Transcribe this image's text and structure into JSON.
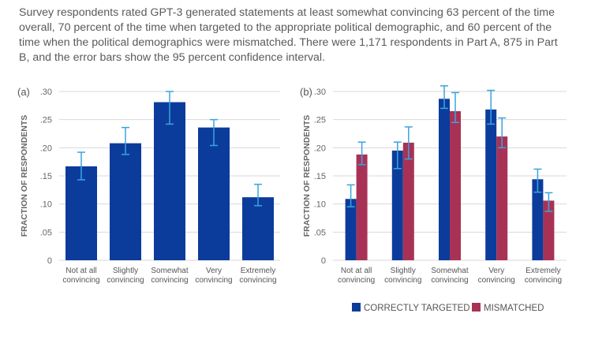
{
  "caption": "Survey respondents rated GPT-3 generated statements at least somewhat convincing 63 percent of the time overall, 70 percent of the time when targeted to the appropriate political demographic, and 60 percent of the time when the political demographics were mismatched. There were 1,171 respondents in Part A, 875 in Part B, and the error bars show the 95 percent confidence interval.",
  "colors": {
    "blue": "#0b3c9c",
    "red": "#a83256",
    "error": "#3aa4de",
    "grid": "#d9d9d9"
  },
  "chart_data": [
    {
      "type": "bar",
      "panel": "(a)",
      "ylabel": "FRACTION OF RESPONDENTS",
      "ylim": [
        0,
        0.3
      ],
      "yticks": [
        0,
        0.05,
        0.1,
        0.15,
        0.2,
        0.25,
        0.3
      ],
      "ytick_labels": [
        "0",
        ".05",
        ".10",
        ".15",
        ".20",
        ".25",
        ".30"
      ],
      "categories": [
        [
          "Not at all",
          "convincing"
        ],
        [
          "Slightly",
          "convincing"
        ],
        [
          "Somewhat",
          "convincing"
        ],
        [
          "Very",
          "convincing"
        ],
        [
          "Extremely",
          "convincing"
        ]
      ],
      "series": [
        {
          "values": [
            0.167,
            0.208,
            0.281,
            0.236,
            0.112
          ],
          "ci_low": [
            0.143,
            0.188,
            0.242,
            0.204,
            0.097
          ],
          "ci_high": [
            0.192,
            0.236,
            0.3,
            0.25,
            0.135
          ]
        }
      ],
      "grid": true
    },
    {
      "type": "bar",
      "panel": "(b)",
      "ylabel": "FRACTION OF RESPONDENTS",
      "ylim": [
        0,
        0.3
      ],
      "yticks": [
        0,
        0.05,
        0.1,
        0.15,
        0.2,
        0.25,
        0.3
      ],
      "ytick_labels": [
        "0",
        ".05",
        ".10",
        ".15",
        ".20",
        ".25",
        ".30"
      ],
      "categories": [
        [
          "Not at all",
          "convincing"
        ],
        [
          "Slightly",
          "convincing"
        ],
        [
          "Somewhat",
          "convincing"
        ],
        [
          "Very",
          "convincing"
        ],
        [
          "Extremely",
          "convincing"
        ]
      ],
      "series": [
        {
          "name": "CORRECTLY TARGETED",
          "values": [
            0.109,
            0.195,
            0.287,
            0.268,
            0.144
          ],
          "ci_low": [
            0.095,
            0.163,
            0.27,
            0.242,
            0.121
          ],
          "ci_high": [
            0.134,
            0.21,
            0.31,
            0.302,
            0.162
          ]
        },
        {
          "name": "MISMATCHED",
          "values": [
            0.188,
            0.209,
            0.265,
            0.22,
            0.106
          ],
          "ci_low": [
            0.17,
            0.18,
            0.245,
            0.2,
            0.087
          ],
          "ci_high": [
            0.21,
            0.237,
            0.298,
            0.253,
            0.12
          ]
        }
      ],
      "legend": "bottom",
      "grid": true
    }
  ]
}
